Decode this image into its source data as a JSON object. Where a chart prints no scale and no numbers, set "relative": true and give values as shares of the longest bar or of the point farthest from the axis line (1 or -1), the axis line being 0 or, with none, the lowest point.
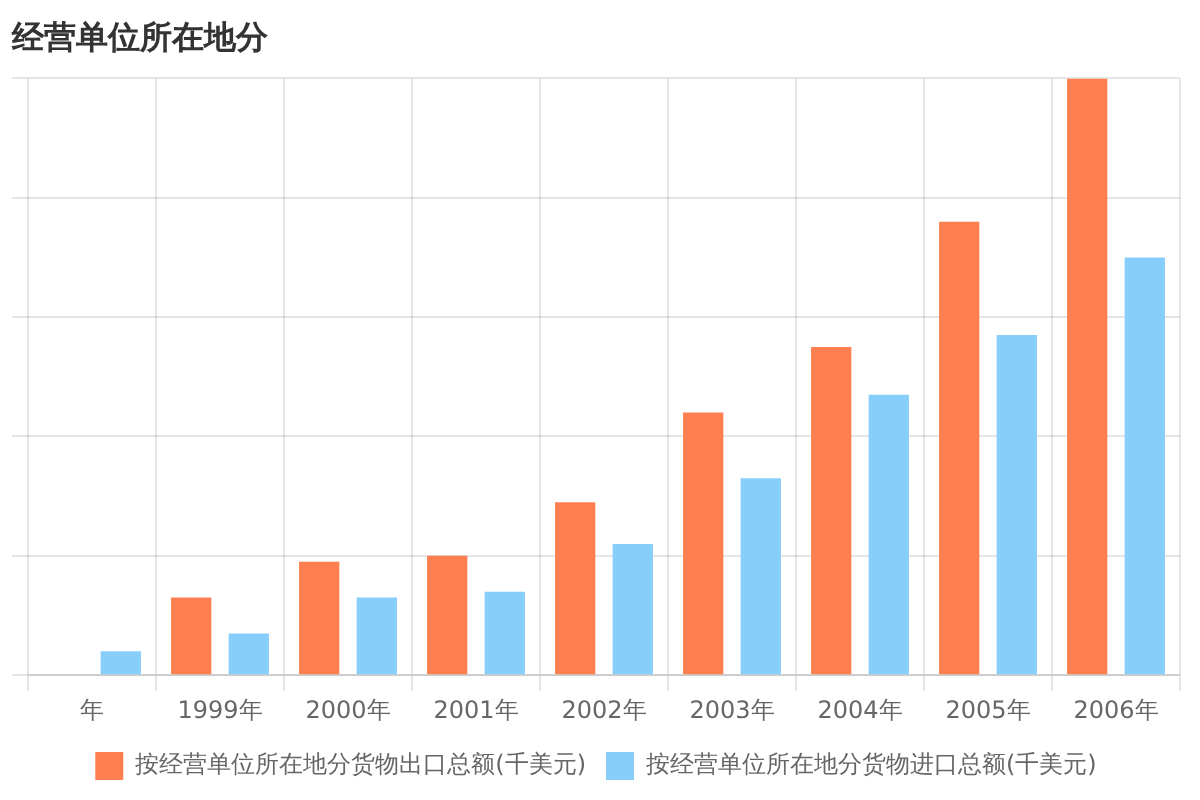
{
  "chart_data": {
    "type": "bar",
    "title": "经营单位所在地分",
    "relative": true,
    "grid": true,
    "legend": "bottom",
    "categories": [
      "年",
      "1999年",
      "2000年",
      "2001年",
      "2002年",
      "2003年",
      "2004年",
      "2005年",
      "2006年"
    ],
    "series": [
      {
        "name": "按经营单位所在地分货物出口总额(千美元)",
        "color": "#ff7f50",
        "values": [
          null,
          0.13,
          0.19,
          0.2,
          0.29,
          0.44,
          0.55,
          0.76,
          1
        ]
      },
      {
        "name": "按经营单位所在地分货物进口总额(千美元)",
        "color": "#87cefa",
        "values": [
          0.04,
          0.07,
          0.13,
          0.14,
          0.22,
          0.33,
          0.47,
          0.57,
          0.7
        ]
      }
    ]
  }
}
